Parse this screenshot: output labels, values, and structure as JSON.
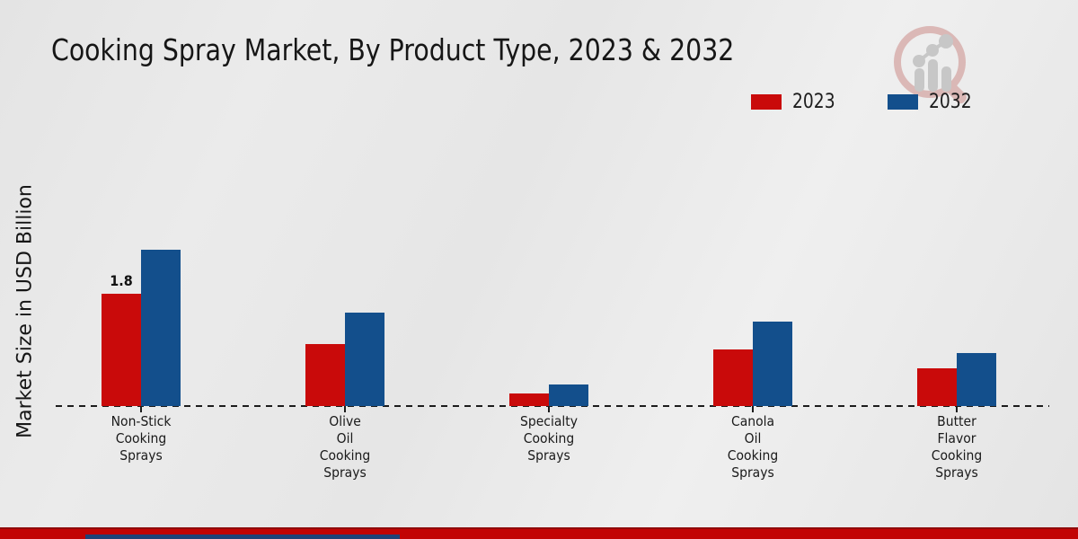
{
  "chart_data": {
    "type": "bar",
    "title": "Cooking Spray Market, By Product Type, 2023 & 2032",
    "ylabel": "Market Size in USD Billion",
    "xlabel": "",
    "categories": [
      "Non-Stick Cooking Sprays",
      "Olive Oil Cooking Sprays",
      "Specialty Cooking Sprays",
      "Canola Oil Cooking Sprays",
      "Butter Flavor Cooking Sprays"
    ],
    "category_lines": [
      [
        "Non-Stick",
        "Cooking",
        "Sprays"
      ],
      [
        "Olive",
        "Oil",
        "Cooking",
        "Sprays"
      ],
      [
        "Specialty",
        "Cooking",
        "Sprays"
      ],
      [
        "Canola",
        "Oil",
        "Cooking",
        "Sprays"
      ],
      [
        "Butter",
        "Flavor",
        "Cooking",
        "Sprays"
      ]
    ],
    "series": [
      {
        "name": "2023",
        "color": "#c90a0a",
        "values": [
          1.8,
          1.0,
          0.2,
          0.9,
          0.6
        ]
      },
      {
        "name": "2032",
        "color": "#134f8c",
        "values": [
          2.5,
          1.5,
          0.35,
          1.35,
          0.85
        ]
      }
    ],
    "ylim": [
      0,
      2.6
    ],
    "grid": false,
    "baseline_style": "dashed",
    "legend_position": "top-right",
    "data_labels": [
      {
        "category_index": 0,
        "series_index": 0,
        "text": "1.8"
      }
    ]
  },
  "legend": {
    "items": [
      {
        "label": "2023",
        "color": "#c90a0a"
      },
      {
        "label": "2032",
        "color": "#134f8c"
      }
    ]
  },
  "branding": {
    "logo_icon": "magnifier-bar-chart-logo",
    "ring_color": "#d9b3b1",
    "bars_color": "#c3c3c3"
  },
  "footer": {
    "red_bar_color": "#c20404",
    "navy_bar_color": "#1f4278"
  }
}
